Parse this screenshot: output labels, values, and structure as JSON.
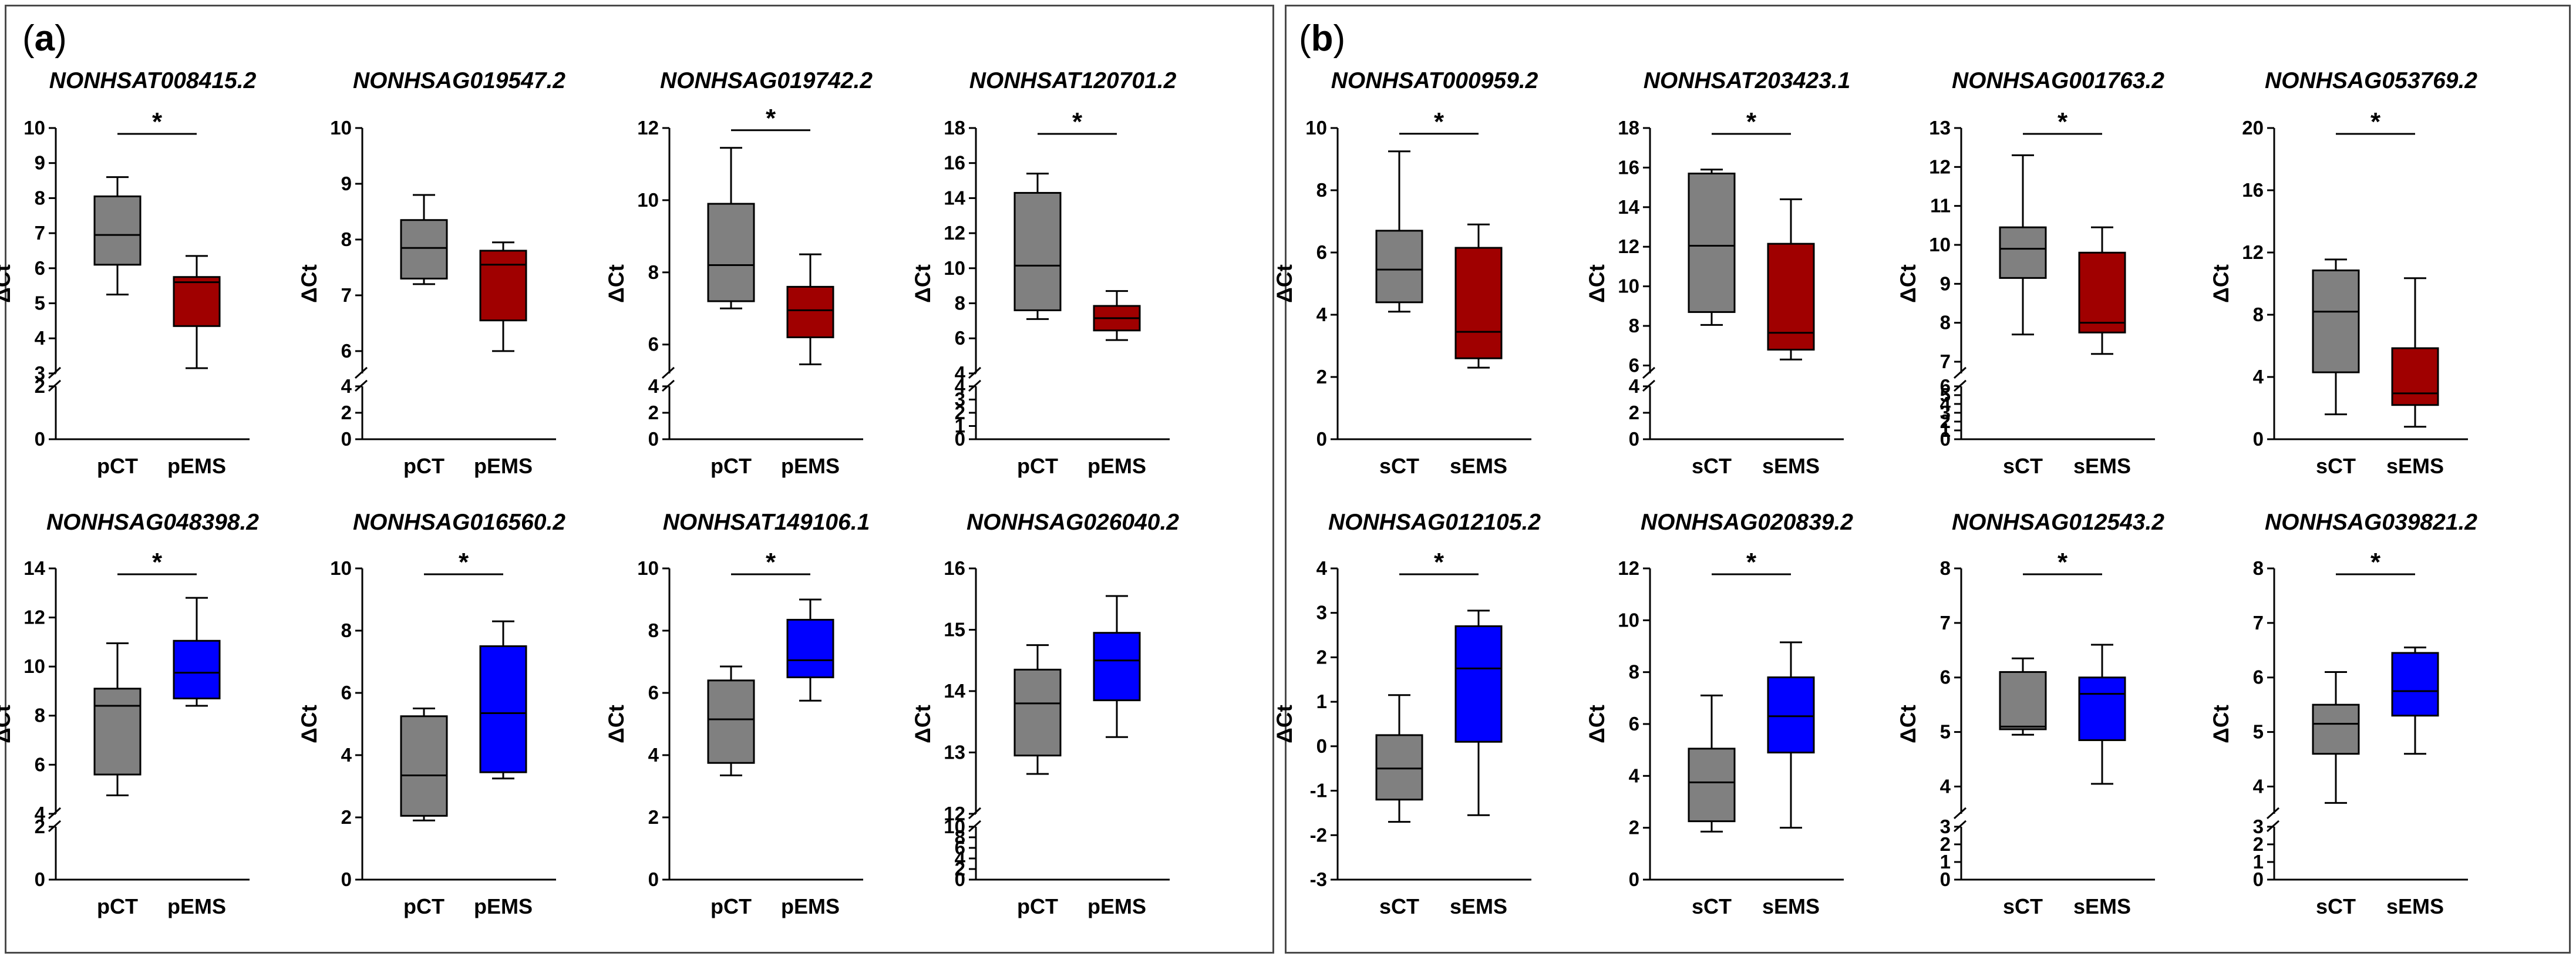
{
  "figure_labels": {
    "panel_a": "a",
    "panel_b": "b"
  },
  "colors": {
    "control": "#808080",
    "ems_a_top": "#a00000",
    "ems_blue": "#0000ff",
    "outline": "#000000"
  },
  "chart_data": [
    {
      "type": "box",
      "panel": "a",
      "row": 1,
      "title": "NONHSAT008415.2",
      "ylabel": "ΔCt",
      "categories": [
        "pCT",
        "pEMS"
      ],
      "significance": "*",
      "axis_break": true,
      "y_ticks_lower": [
        0,
        2
      ],
      "y_ticks_upper": [
        3,
        4,
        5,
        6,
        7,
        8,
        9,
        10
      ],
      "ylim_lower": [
        0,
        2
      ],
      "ylim_upper": [
        3,
        10
      ],
      "series": [
        {
          "name": "pCT",
          "color": "#808080",
          "min": 5.25,
          "q1": 6.1,
          "median": 6.95,
          "q3": 8.05,
          "max": 8.6
        },
        {
          "name": "pEMS",
          "color": "#a00000",
          "min": 3.15,
          "q1": 4.35,
          "median": 5.6,
          "q3": 5.75,
          "max": 6.35
        }
      ]
    },
    {
      "type": "box",
      "panel": "a",
      "row": 1,
      "title": "NONHSAG019547.2",
      "ylabel": "ΔCt",
      "categories": [
        "pCT",
        "pEMS"
      ],
      "significance": "",
      "axis_break": true,
      "y_ticks_lower": [
        0,
        2,
        4
      ],
      "y_ticks_upper": [
        6,
        7,
        8,
        9,
        10
      ],
      "ylim_lower": [
        0,
        4
      ],
      "ylim_upper": [
        5.6,
        10
      ],
      "series": [
        {
          "name": "pCT",
          "color": "#808080",
          "min": 7.2,
          "q1": 7.3,
          "median": 7.85,
          "q3": 8.35,
          "max": 8.8
        },
        {
          "name": "pEMS",
          "color": "#a00000",
          "min": 6.0,
          "q1": 6.55,
          "median": 7.55,
          "q3": 7.8,
          "max": 7.95
        }
      ]
    },
    {
      "type": "box",
      "panel": "a",
      "row": 1,
      "title": "NONHSAG019742.2",
      "ylabel": "ΔCt",
      "categories": [
        "pCT",
        "pEMS"
      ],
      "significance": "*",
      "axis_break": true,
      "y_ticks_lower": [
        0,
        2,
        4
      ],
      "y_ticks_upper": [
        6,
        8,
        10,
        12
      ],
      "ylim_lower": [
        0,
        4
      ],
      "ylim_upper": [
        5.2,
        12
      ],
      "series": [
        {
          "name": "pCT",
          "color": "#808080",
          "min": 7.0,
          "q1": 7.2,
          "median": 8.2,
          "q3": 9.9,
          "max": 11.45
        },
        {
          "name": "pEMS",
          "color": "#a00000",
          "min": 5.45,
          "q1": 6.2,
          "median": 6.95,
          "q3": 7.6,
          "max": 8.5
        }
      ]
    },
    {
      "type": "box",
      "panel": "a",
      "row": 1,
      "title": "NONHSAT120701.2",
      "ylabel": "ΔCt",
      "categories": [
        "pCT",
        "pEMS"
      ],
      "significance": "*",
      "axis_break": true,
      "y_ticks_lower": [
        0,
        1,
        2,
        3,
        4
      ],
      "y_ticks_upper": [
        4,
        6,
        8,
        10,
        12,
        14,
        16,
        18
      ],
      "ylim_lower": [
        0,
        4
      ],
      "ylim_upper": [
        4,
        18
      ],
      "series": [
        {
          "name": "pCT",
          "color": "#808080",
          "min": 7.1,
          "q1": 7.6,
          "median": 10.15,
          "q3": 14.3,
          "max": 15.4
        },
        {
          "name": "pEMS",
          "color": "#a00000",
          "min": 5.9,
          "q1": 6.45,
          "median": 7.15,
          "q3": 7.85,
          "max": 8.7
        }
      ]
    },
    {
      "type": "box",
      "panel": "a",
      "row": 2,
      "title": "NONHSAG048398.2",
      "ylabel": "ΔCt",
      "categories": [
        "pCT",
        "pEMS"
      ],
      "significance": "*",
      "axis_break": true,
      "y_ticks_lower": [
        0,
        2
      ],
      "y_ticks_upper": [
        4,
        6,
        8,
        10,
        12,
        14
      ],
      "ylim_lower": [
        0,
        2
      ],
      "ylim_upper": [
        4,
        14
      ],
      "series": [
        {
          "name": "pCT",
          "color": "#808080",
          "min": 4.75,
          "q1": 5.6,
          "median": 8.4,
          "q3": 9.1,
          "max": 10.95
        },
        {
          "name": "pEMS",
          "color": "#0000ff",
          "min": 8.4,
          "q1": 8.7,
          "median": 9.75,
          "q3": 11.05,
          "max": 12.8
        }
      ]
    },
    {
      "type": "box",
      "panel": "a",
      "row": 2,
      "title": "NONHSAG016560.2",
      "ylabel": "ΔCt",
      "categories": [
        "pCT",
        "pEMS"
      ],
      "significance": "*",
      "axis_break": false,
      "y_ticks": [
        0,
        2,
        4,
        6,
        8,
        10
      ],
      "ylim": [
        0,
        10
      ],
      "series": [
        {
          "name": "pCT",
          "color": "#808080",
          "min": 1.9,
          "q1": 2.05,
          "median": 3.35,
          "q3": 5.25,
          "max": 5.5
        },
        {
          "name": "pEMS",
          "color": "#0000ff",
          "min": 3.25,
          "q1": 3.45,
          "median": 5.35,
          "q3": 7.5,
          "max": 8.3
        }
      ]
    },
    {
      "type": "box",
      "panel": "a",
      "row": 2,
      "title": "NONHSAT149106.1",
      "ylabel": "ΔCt",
      "categories": [
        "pCT",
        "pEMS"
      ],
      "significance": "*",
      "axis_break": false,
      "y_ticks": [
        0,
        2,
        4,
        6,
        8,
        10
      ],
      "ylim": [
        0,
        10
      ],
      "series": [
        {
          "name": "pCT",
          "color": "#808080",
          "min": 3.35,
          "q1": 3.75,
          "median": 5.15,
          "q3": 6.4,
          "max": 6.85
        },
        {
          "name": "pEMS",
          "color": "#0000ff",
          "min": 5.75,
          "q1": 6.5,
          "median": 7.05,
          "q3": 8.35,
          "max": 9.0
        }
      ]
    },
    {
      "type": "box",
      "panel": "a",
      "row": 2,
      "title": "NONHSAG026040.2",
      "ylabel": "ΔCt",
      "categories": [
        "pCT",
        "pEMS"
      ],
      "significance": "",
      "axis_break": true,
      "y_ticks_lower": [
        0,
        2,
        4,
        6,
        8,
        10
      ],
      "y_ticks_upper": [
        12,
        13,
        14,
        15,
        16
      ],
      "ylim_lower": [
        0,
        10
      ],
      "ylim_upper": [
        12,
        16
      ],
      "series": [
        {
          "name": "pCT",
          "color": "#808080",
          "min": 12.65,
          "q1": 12.95,
          "median": 13.8,
          "q3": 14.35,
          "max": 14.75
        },
        {
          "name": "pEMS",
          "color": "#0000ff",
          "min": 13.25,
          "q1": 13.85,
          "median": 14.5,
          "q3": 14.95,
          "max": 15.55
        }
      ]
    },
    {
      "type": "box",
      "panel": "b",
      "row": 1,
      "title": "NONHSAT000959.2",
      "ylabel": "ΔCt",
      "categories": [
        "sCT",
        "sEMS"
      ],
      "significance": "*",
      "axis_break": false,
      "y_ticks": [
        0,
        2,
        4,
        6,
        8,
        10
      ],
      "ylim": [
        0,
        10
      ],
      "series": [
        {
          "name": "sCT",
          "color": "#808080",
          "min": 4.1,
          "q1": 4.4,
          "median": 5.45,
          "q3": 6.7,
          "max": 9.25
        },
        {
          "name": "sEMS",
          "color": "#a00000",
          "min": 2.3,
          "q1": 2.6,
          "median": 3.45,
          "q3": 6.15,
          "max": 6.9
        }
      ]
    },
    {
      "type": "box",
      "panel": "b",
      "row": 1,
      "title": "NONHSAT203423.1",
      "ylabel": "ΔCt",
      "categories": [
        "sCT",
        "sEMS"
      ],
      "significance": "*",
      "axis_break": true,
      "y_ticks_lower": [
        0,
        2,
        4
      ],
      "y_ticks_upper": [
        6,
        8,
        10,
        12,
        14,
        16,
        18
      ],
      "ylim_lower": [
        0,
        4
      ],
      "ylim_upper": [
        5.6,
        18
      ],
      "series": [
        {
          "name": "sCT",
          "color": "#808080",
          "min": 8.05,
          "q1": 8.7,
          "median": 12.05,
          "q3": 15.7,
          "max": 15.9
        },
        {
          "name": "sEMS",
          "color": "#a00000",
          "min": 6.3,
          "q1": 6.8,
          "median": 7.65,
          "q3": 12.15,
          "max": 14.4
        }
      ]
    },
    {
      "type": "box",
      "panel": "b",
      "row": 1,
      "title": "NONHSAG001763.2",
      "ylabel": "ΔCt",
      "categories": [
        "sCT",
        "sEMS"
      ],
      "significance": "*",
      "axis_break": true,
      "y_ticks_lower": [
        0,
        1,
        2,
        3,
        4,
        5,
        6
      ],
      "y_ticks_upper": [
        7,
        8,
        9,
        10,
        11,
        12,
        13
      ],
      "ylim_lower": [
        0,
        6
      ],
      "ylim_upper": [
        6.7,
        13
      ],
      "series": [
        {
          "name": "sCT",
          "color": "#808080",
          "min": 7.7,
          "q1": 9.15,
          "median": 9.9,
          "q3": 10.45,
          "max": 12.3
        },
        {
          "name": "sEMS",
          "color": "#a00000",
          "min": 7.2,
          "q1": 7.75,
          "median": 8.0,
          "q3": 9.8,
          "max": 10.45
        }
      ]
    },
    {
      "type": "box",
      "panel": "b",
      "row": 1,
      "title": "NONHSAG053769.2",
      "ylabel": "ΔCt",
      "categories": [
        "sCT",
        "sEMS"
      ],
      "significance": "*",
      "axis_break": false,
      "y_ticks": [
        0,
        4,
        8,
        12,
        16,
        20
      ],
      "ylim": [
        0,
        20
      ],
      "series": [
        {
          "name": "sCT",
          "color": "#808080",
          "min": 1.6,
          "q1": 4.3,
          "median": 8.2,
          "q3": 10.85,
          "max": 11.55
        },
        {
          "name": "sEMS",
          "color": "#a00000",
          "min": 0.8,
          "q1": 2.2,
          "median": 2.95,
          "q3": 5.85,
          "max": 10.35
        }
      ]
    },
    {
      "type": "box",
      "panel": "b",
      "row": 2,
      "title": "NONHSAG012105.2",
      "ylabel": "ΔCt",
      "categories": [
        "sCT",
        "sEMS"
      ],
      "significance": "*",
      "axis_break": false,
      "y_ticks": [
        -3,
        -2,
        -1,
        0,
        1,
        2,
        3,
        4
      ],
      "ylim": [
        -3,
        4
      ],
      "series": [
        {
          "name": "sCT",
          "color": "#808080",
          "min": -1.7,
          "q1": -1.2,
          "median": -0.5,
          "q3": 0.25,
          "max": 1.15
        },
        {
          "name": "sEMS",
          "color": "#0000ff",
          "min": -1.55,
          "q1": 0.1,
          "median": 1.75,
          "q3": 2.7,
          "max": 3.05
        }
      ]
    },
    {
      "type": "box",
      "panel": "b",
      "row": 2,
      "title": "NONHSAG020839.2",
      "ylabel": "ΔCt",
      "categories": [
        "sCT",
        "sEMS"
      ],
      "significance": "*",
      "axis_break": false,
      "y_ticks": [
        0,
        2,
        4,
        6,
        8,
        10,
        12
      ],
      "ylim": [
        0,
        12
      ],
      "series": [
        {
          "name": "sCT",
          "color": "#808080",
          "min": 1.85,
          "q1": 2.25,
          "median": 3.75,
          "q3": 5.05,
          "max": 7.1
        },
        {
          "name": "sEMS",
          "color": "#0000ff",
          "min": 2.0,
          "q1": 4.9,
          "median": 6.3,
          "q3": 7.8,
          "max": 9.15
        }
      ]
    },
    {
      "type": "box",
      "panel": "b",
      "row": 2,
      "title": "NONHSAG012543.2",
      "ylabel": "ΔCt",
      "categories": [
        "sCT",
        "sEMS"
      ],
      "significance": "*",
      "axis_break": true,
      "y_ticks_lower": [
        0,
        1,
        2,
        3
      ],
      "y_ticks_upper": [
        4,
        5,
        6,
        7,
        8
      ],
      "ylim_lower": [
        0,
        3
      ],
      "ylim_upper": [
        3.5,
        8
      ],
      "series": [
        {
          "name": "sCT",
          "color": "#808080",
          "min": 4.95,
          "q1": 5.05,
          "median": 5.1,
          "q3": 6.1,
          "max": 6.35
        },
        {
          "name": "sEMS",
          "color": "#0000ff",
          "min": 4.05,
          "q1": 4.85,
          "median": 5.7,
          "q3": 6.0,
          "max": 6.6
        }
      ]
    },
    {
      "type": "box",
      "panel": "b",
      "row": 2,
      "title": "NONHSAG039821.2",
      "ylabel": "ΔCt",
      "categories": [
        "sCT",
        "sEMS"
      ],
      "significance": "*",
      "axis_break": true,
      "y_ticks_lower": [
        0,
        1,
        2,
        3
      ],
      "y_ticks_upper": [
        4,
        5,
        6,
        7,
        8
      ],
      "ylim_lower": [
        0,
        3
      ],
      "ylim_upper": [
        3.5,
        8
      ],
      "series": [
        {
          "name": "sCT",
          "color": "#808080",
          "min": 3.7,
          "q1": 4.6,
          "median": 5.15,
          "q3": 5.5,
          "max": 6.1
        },
        {
          "name": "sEMS",
          "color": "#0000ff",
          "min": 4.6,
          "q1": 5.3,
          "median": 5.75,
          "q3": 6.45,
          "max": 6.55
        }
      ]
    }
  ]
}
